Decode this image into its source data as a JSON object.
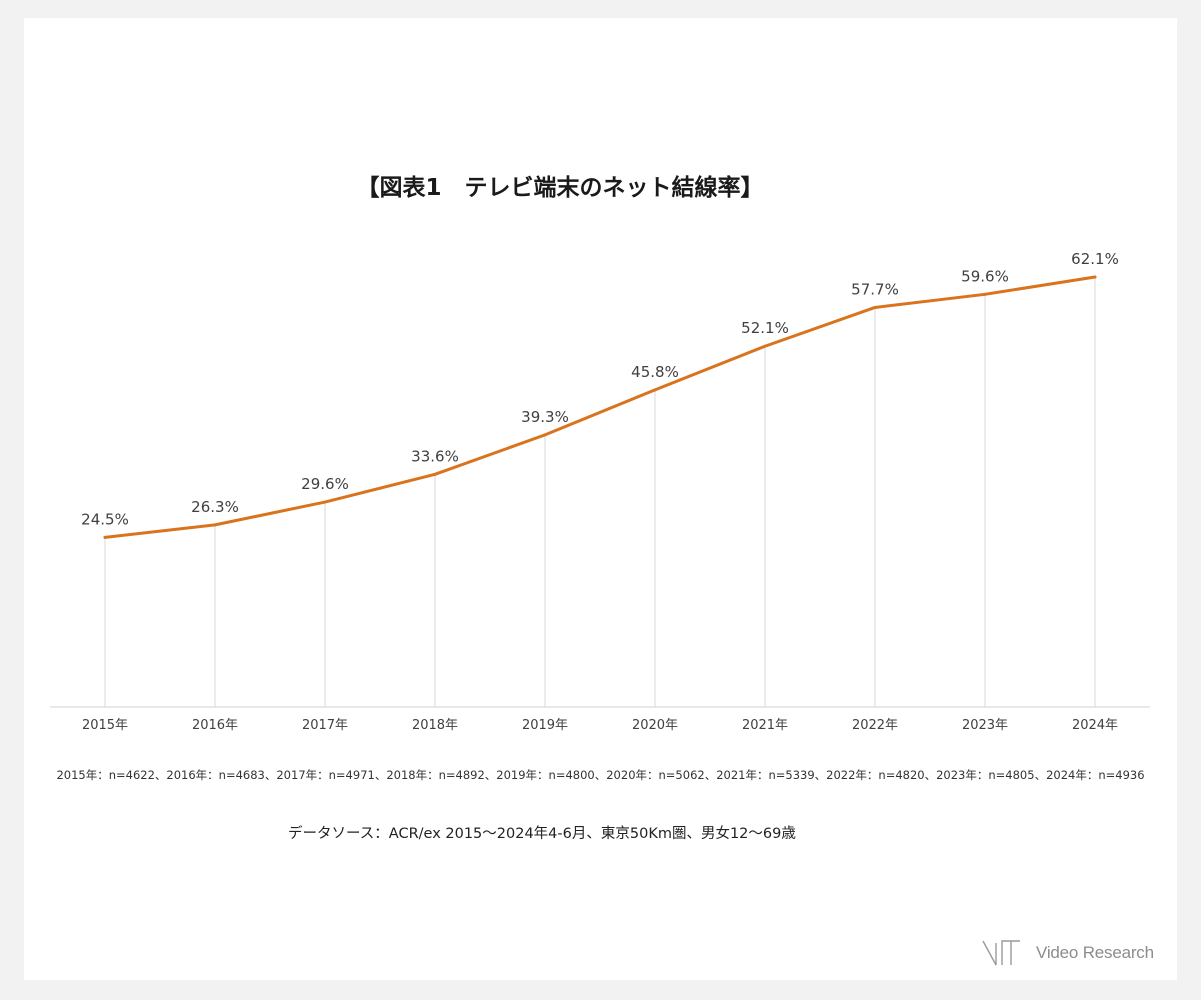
{
  "chart_data": {
    "type": "line",
    "title": "【図表1　テレビ端末のネット結線率】",
    "categories": [
      "2015年",
      "2016年",
      "2017年",
      "2018年",
      "2019年",
      "2020年",
      "2021年",
      "2022年",
      "2023年",
      "2024年"
    ],
    "series": [
      {
        "values": [
          24.5,
          26.3,
          29.6,
          33.6,
          39.3,
          45.8,
          52.1,
          57.7,
          59.6,
          62.1
        ],
        "labels": [
          "24.5%",
          "26.3%",
          "29.6%",
          "33.6%",
          "39.3%",
          "45.8%",
          "52.1%",
          "57.7%",
          "59.6%",
          "62.1%"
        ],
        "color": "#d9731c"
      }
    ],
    "ylim": [
      0,
      65
    ],
    "xlabel": "",
    "ylabel": "",
    "grid": "vertical-drop-lines",
    "legend": "none"
  },
  "footnote": "2015年：n=4622、2016年：n=4683、2017年：n=4971、2018年：n=4892、2019年：n=4800、2020年：n=5062、2021年：n=5339、2022年：n=4820、2023年：n=4805、2024年：n=4936",
  "source": "データソース：ACR/ex 2015～2024年4-6月、東京50Km圏、男女12～69歳",
  "logo": {
    "text": "Video Research",
    "color": "#8c8c8c"
  }
}
